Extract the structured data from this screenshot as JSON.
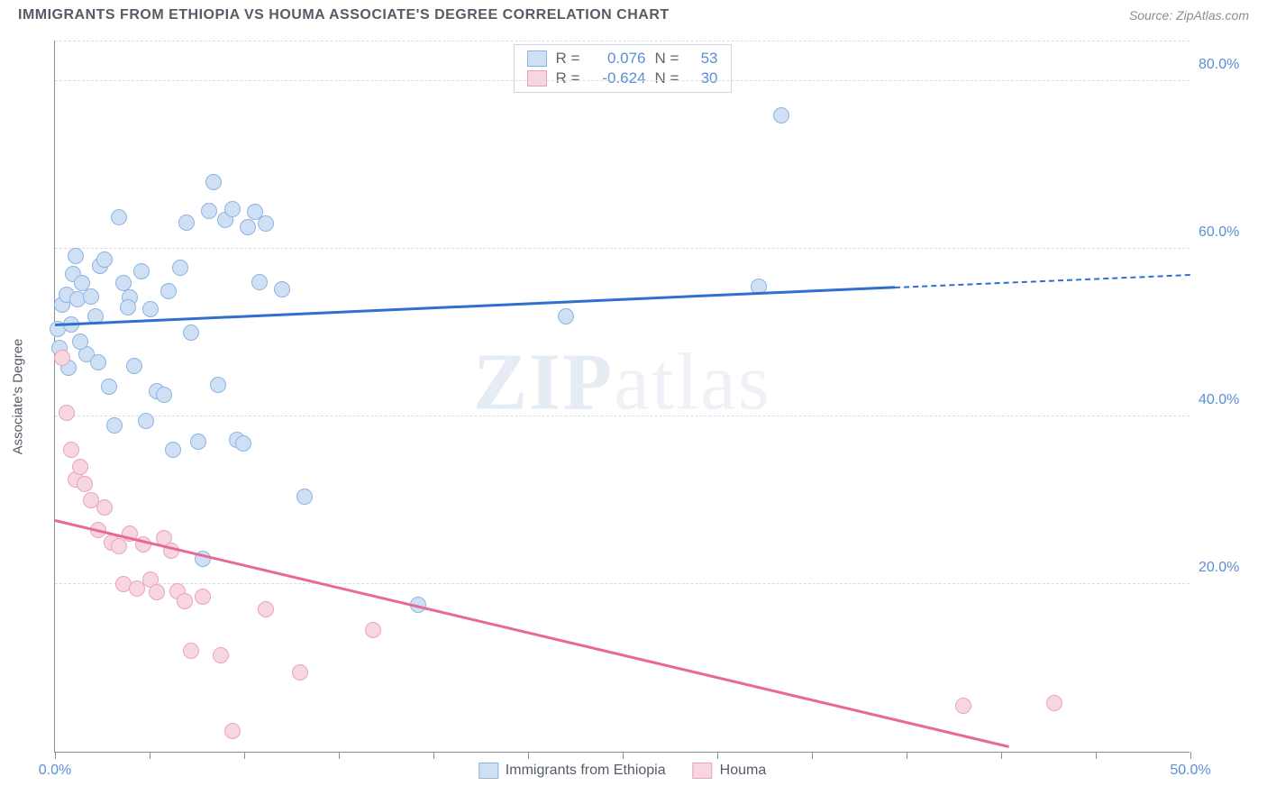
{
  "title": "IMMIGRANTS FROM ETHIOPIA VS HOUMA ASSOCIATE'S DEGREE CORRELATION CHART",
  "source": "Source: ZipAtlas.com",
  "watermark_a": "ZIP",
  "watermark_b": "atlas",
  "chart": {
    "type": "scatter",
    "background_color": "#ffffff",
    "grid_color": "#d8dde4",
    "axis_color": "#888f99",
    "ylabel": "Associate's Degree",
    "xlim": [
      0,
      50
    ],
    "ylim": [
      0,
      85
    ],
    "xticks": [
      0,
      4.17,
      8.33,
      12.5,
      16.67,
      20.83,
      25,
      29.17,
      33.33,
      37.5,
      41.67,
      45.83,
      50
    ],
    "xtick_labels": {
      "0": "0.0%",
      "50": "50.0%"
    },
    "yticks": [
      20,
      40,
      60,
      80
    ],
    "ytick_labels": [
      "20.0%",
      "40.0%",
      "60.0%",
      "80.0%"
    ],
    "marker_radius": 9,
    "marker_stroke": 1.5,
    "series": [
      {
        "name": "Immigrants from Ethiopia",
        "fill": "#cfe0f4",
        "stroke": "#8cb4e2",
        "line_color": "#2f6fd0",
        "R": "0.076",
        "N": "53",
        "trend": {
          "x1": 0,
          "y1": 50.8,
          "x2": 37,
          "y2": 55.3,
          "dash_to_x": 50,
          "dash_to_y": 56.8
        },
        "points": [
          [
            0.1,
            50.5
          ],
          [
            0.2,
            48.2
          ],
          [
            0.3,
            53.4
          ],
          [
            0.5,
            54.6
          ],
          [
            0.7,
            51.0
          ],
          [
            0.8,
            57.0
          ],
          [
            0.9,
            59.2
          ],
          [
            1.0,
            54.0
          ],
          [
            1.2,
            55.9
          ],
          [
            1.4,
            47.5
          ],
          [
            1.6,
            54.3
          ],
          [
            1.8,
            52.0
          ],
          [
            2.0,
            58.0
          ],
          [
            2.2,
            58.8
          ],
          [
            2.4,
            43.6
          ],
          [
            2.6,
            39.0
          ],
          [
            2.8,
            63.8
          ],
          [
            3.0,
            56.0
          ],
          [
            3.3,
            54.2
          ],
          [
            3.5,
            46.0
          ],
          [
            3.8,
            57.4
          ],
          [
            4.0,
            39.5
          ],
          [
            4.2,
            52.8
          ],
          [
            4.5,
            43.0
          ],
          [
            4.8,
            42.6
          ],
          [
            5.0,
            55.0
          ],
          [
            5.2,
            36.0
          ],
          [
            5.5,
            57.8
          ],
          [
            5.8,
            63.2
          ],
          [
            6.0,
            50.0
          ],
          [
            6.3,
            37.0
          ],
          [
            6.5,
            23.0
          ],
          [
            6.8,
            64.6
          ],
          [
            7.0,
            68.0
          ],
          [
            7.2,
            43.8
          ],
          [
            7.5,
            63.5
          ],
          [
            7.8,
            64.8
          ],
          [
            8.0,
            37.2
          ],
          [
            8.3,
            36.8
          ],
          [
            8.5,
            62.6
          ],
          [
            8.8,
            64.5
          ],
          [
            9.0,
            56.1
          ],
          [
            9.3,
            63.0
          ],
          [
            10.0,
            55.2
          ],
          [
            11.0,
            30.5
          ],
          [
            16.0,
            17.5
          ],
          [
            22.5,
            52.0
          ],
          [
            31.0,
            55.5
          ],
          [
            32.0,
            76.0
          ],
          [
            0.6,
            45.8
          ],
          [
            1.1,
            49.0
          ],
          [
            1.9,
            46.5
          ],
          [
            3.2,
            53.0
          ]
        ]
      },
      {
        "name": "Houma",
        "fill": "#f8d6e0",
        "stroke": "#eaa3bc",
        "line_color": "#e86a93",
        "R": "-0.624",
        "N": "30",
        "trend": {
          "x1": 0,
          "y1": 27.5,
          "x2": 42,
          "y2": 0.5,
          "dash_to_x": 42,
          "dash_to_y": 0.5
        },
        "points": [
          [
            0.3,
            47.0
          ],
          [
            0.5,
            40.5
          ],
          [
            0.7,
            36.0
          ],
          [
            0.9,
            32.5
          ],
          [
            1.1,
            34.0
          ],
          [
            1.3,
            32.0
          ],
          [
            1.6,
            30.0
          ],
          [
            1.9,
            26.5
          ],
          [
            2.2,
            29.2
          ],
          [
            2.5,
            25.0
          ],
          [
            2.8,
            24.5
          ],
          [
            3.0,
            20.0
          ],
          [
            3.3,
            26.0
          ],
          [
            3.6,
            19.5
          ],
          [
            3.9,
            24.8
          ],
          [
            4.2,
            20.5
          ],
          [
            4.5,
            19.0
          ],
          [
            4.8,
            25.5
          ],
          [
            5.1,
            24.0
          ],
          [
            5.4,
            19.2
          ],
          [
            5.7,
            18.0
          ],
          [
            6.0,
            12.0
          ],
          [
            6.5,
            18.5
          ],
          [
            7.3,
            11.5
          ],
          [
            7.8,
            2.5
          ],
          [
            9.3,
            17.0
          ],
          [
            10.8,
            9.5
          ],
          [
            14.0,
            14.5
          ],
          [
            40.0,
            5.5
          ],
          [
            44.0,
            5.8
          ]
        ]
      }
    ],
    "legend_top": {
      "R_label": "R =",
      "N_label": "N ="
    }
  }
}
